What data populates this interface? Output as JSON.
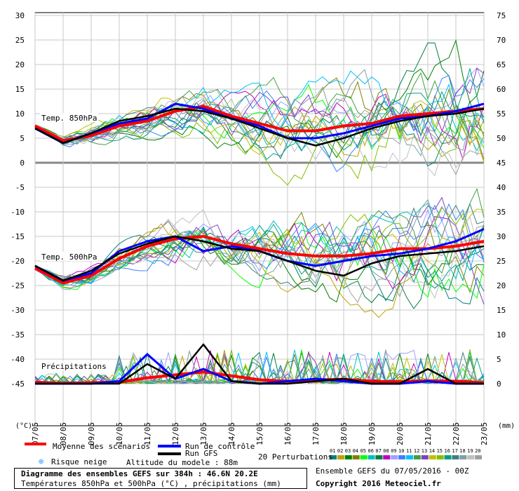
{
  "chart_data": {
    "type": "line",
    "x_dates": [
      "07/05",
      "08/05",
      "09/05",
      "10/05",
      "11/05",
      "12/05",
      "13/05",
      "14/05",
      "15/05",
      "16/05",
      "17/05",
      "18/05",
      "19/05",
      "20/05",
      "21/05",
      "22/05",
      "23/05"
    ],
    "left_axis": {
      "unit_label": "(°C)",
      "ticks": [
        30,
        25,
        20,
        15,
        10,
        5,
        0,
        -5,
        -10,
        -15,
        -20,
        -25,
        -30,
        -35,
        -40,
        -45
      ],
      "range": [
        -45,
        30
      ]
    },
    "right_axis": {
      "unit_label": "(mm)",
      "ticks": [
        75,
        70,
        65,
        60,
        55,
        50,
        45,
        40,
        35,
        30,
        25,
        20,
        15,
        10,
        5,
        0
      ],
      "range": [
        0,
        75
      ]
    },
    "grid": true,
    "panel_labels": {
      "t850": "Temp. 850hPa",
      "t500": "Temp. 500hPa",
      "precip": "Précipitations"
    },
    "series": [
      {
        "name": "Moyenne des scénarios",
        "color": "#ff0000",
        "t850": [
          7.5,
          4.5,
          5.5,
          7.5,
          8.5,
          10.5,
          11.5,
          9.5,
          8.0,
          6.5,
          6.5,
          7.5,
          8.0,
          9.5,
          10.0,
          10.5,
          11.0
        ],
        "t500": [
          -21.5,
          -24.5,
          -23.0,
          -19.5,
          -17.0,
          -15.5,
          -15.0,
          -16.5,
          -17.5,
          -18.5,
          -19.0,
          -19.0,
          -18.5,
          -17.5,
          -17.5,
          -17.0,
          -16.0
        ],
        "precip": [
          0.3,
          0.1,
          0.2,
          0.3,
          1.2,
          1.8,
          2.4,
          1.6,
          0.8,
          0.5,
          0.8,
          0.9,
          0.5,
          0.4,
          0.6,
          0.5,
          0.2
        ]
      },
      {
        "name": "Run de contrôle",
        "color": "#0000ff",
        "t850": [
          7.0,
          4.0,
          6.0,
          8.0,
          9.0,
          12.0,
          11.0,
          9.0,
          7.5,
          5.0,
          5.0,
          6.0,
          7.5,
          9.0,
          9.5,
          10.5,
          12.0
        ],
        "t500": [
          -21.0,
          -24.0,
          -22.5,
          -18.0,
          -16.0,
          -15.0,
          -18.0,
          -17.0,
          -18.0,
          -20.0,
          -21.0,
          -20.0,
          -19.0,
          -18.5,
          -17.5,
          -16.0,
          -13.5
        ],
        "precip": [
          0.0,
          0.0,
          0.0,
          0.5,
          6.0,
          1.0,
          3.0,
          0.5,
          0.0,
          0.5,
          1.0,
          0.5,
          0.0,
          0.0,
          0.5,
          0.0,
          0.0
        ]
      },
      {
        "name": "Run GFS",
        "color": "#000000",
        "t850": [
          7.0,
          4.0,
          6.0,
          8.5,
          9.5,
          11.0,
          10.5,
          9.0,
          7.0,
          5.0,
          3.5,
          5.0,
          7.0,
          8.5,
          9.5,
          10.0,
          11.0
        ],
        "t500": [
          -21.0,
          -24.0,
          -22.0,
          -18.5,
          -16.5,
          -15.0,
          -16.0,
          -17.5,
          -18.0,
          -20.0,
          -22.0,
          -23.0,
          -20.5,
          -19.0,
          -18.5,
          -18.0,
          -17.0
        ],
        "precip": [
          0.0,
          0.0,
          0.0,
          0.0,
          4.0,
          1.0,
          8.0,
          0.5,
          0.0,
          0.0,
          0.5,
          1.0,
          0.0,
          0.0,
          3.0,
          0.0,
          0.0
        ]
      }
    ],
    "perturbations": {
      "label": "20 Perturbations",
      "ids": [
        "01",
        "02",
        "03",
        "04",
        "05",
        "06",
        "07",
        "08",
        "09",
        "10",
        "11",
        "12",
        "13",
        "14",
        "15",
        "16",
        "17",
        "18",
        "19",
        "20"
      ],
      "colors": [
        "#008080",
        "#c0a000",
        "#008000",
        "#808000",
        "#00ff00",
        "#00c0c0",
        "#008040",
        "#c000c0",
        "#a0a0ff",
        "#4080ff",
        "#00c0ff",
        "#40a040",
        "#8040c0",
        "#c0c000",
        "#80c000",
        "#00a080",
        "#408080",
        "#80a0a0",
        "#c0c0c0",
        "#a0a0a0"
      ]
    }
  },
  "legend": {
    "mean": "Moyenne des scénarios",
    "control": "Run de contrôle",
    "gfs": "Run GFS",
    "snow": "Risque neige",
    "altitude": "Altitude du modele : 88m"
  },
  "footer": {
    "title": "Diagramme des ensembles GEFS sur 384h : 46.6N 20.2E",
    "subtitle": "Températures 850hPa et 500hPa (°C) , précipitations (mm)",
    "run": "Ensemble GEFS du 07/05/2016 - 00Z",
    "copyright": "Copyright 2016 Meteociel.fr"
  },
  "colors": {
    "mean": "#ff0000",
    "control": "#0000ff",
    "gfs": "#000000",
    "grid": "#c8c8c8",
    "frame": "#000000",
    "snow": "#3aa0ff"
  }
}
